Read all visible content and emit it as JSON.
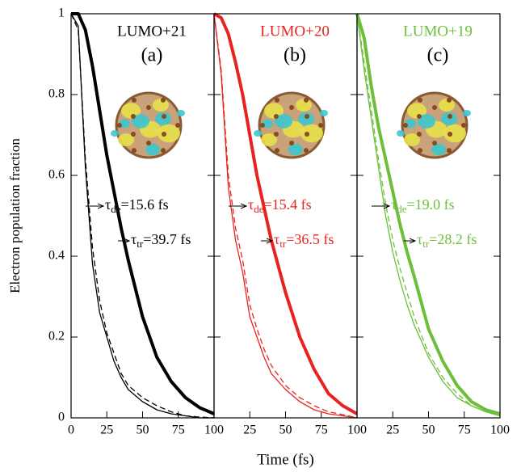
{
  "chart_data": [
    {
      "type": "line",
      "title": "LUMO+21",
      "label": "(a)",
      "ylabel": "Electron population fraction",
      "x": [
        0,
        5,
        10,
        15,
        20,
        25,
        30,
        35,
        40,
        50,
        60,
        70,
        80,
        90,
        100
      ],
      "series": [
        {
          "color": "#000000",
          "line_width": 4,
          "dash": false,
          "values": [
            1,
            1,
            0.96,
            0.87,
            0.76,
            0.65,
            0.56,
            0.47,
            0.39,
            0.25,
            0.15,
            0.09,
            0.05,
            0.025,
            0.01
          ]
        },
        {
          "color": "#000000",
          "line_width": 1.3,
          "dash": false,
          "values": [
            1,
            0.97,
            0.62,
            0.38,
            0.26,
            0.2,
            0.14,
            0.1,
            0.07,
            0.04,
            0.02,
            0.01,
            0.005,
            0,
            0
          ]
        },
        {
          "color": "#000000",
          "line_width": 1.3,
          "dash": true,
          "values": [
            1,
            0.96,
            0.64,
            0.42,
            0.29,
            0.21,
            0.16,
            0.11,
            0.08,
            0.05,
            0.03,
            0.015,
            0.005,
            0.002,
            0
          ]
        }
      ],
      "annotations": [
        {
          "symbol": "τ",
          "subscript": "de",
          "text": "=15.6 fs"
        },
        {
          "symbol": "τ",
          "subscript": "tr",
          "text": "=39.7 fs"
        }
      ],
      "xlim": [
        0,
        100
      ],
      "ylim": [
        0,
        1
      ],
      "xticks": [
        0,
        25,
        50,
        75,
        100
      ],
      "yticks": [
        0,
        0.2,
        0.4,
        0.6,
        0.8,
        1
      ]
    },
    {
      "type": "line",
      "title": "LUMO+20",
      "label": "(b)",
      "xlabel": "Time (fs)",
      "x": [
        0,
        5,
        10,
        15,
        20,
        25,
        30,
        35,
        40,
        50,
        60,
        70,
        80,
        90,
        100
      ],
      "series": [
        {
          "color": "#e8231e",
          "line_width": 4,
          "dash": false,
          "values": [
            1,
            0.99,
            0.95,
            0.88,
            0.8,
            0.7,
            0.6,
            0.52,
            0.44,
            0.31,
            0.2,
            0.12,
            0.06,
            0.03,
            0.01
          ]
        },
        {
          "color": "#e8231e",
          "line_width": 1.3,
          "dash": false,
          "values": [
            1,
            0.85,
            0.57,
            0.44,
            0.36,
            0.25,
            0.2,
            0.15,
            0.11,
            0.07,
            0.04,
            0.02,
            0.01,
            0.005,
            0
          ]
        },
        {
          "color": "#e8231e",
          "line_width": 1.3,
          "dash": true,
          "values": [
            1,
            0.86,
            0.6,
            0.47,
            0.39,
            0.28,
            0.22,
            0.17,
            0.13,
            0.08,
            0.05,
            0.03,
            0.015,
            0.008,
            0
          ]
        }
      ],
      "annotations": [
        {
          "symbol": "τ",
          "subscript": "de",
          "text": "=15.4 fs"
        },
        {
          "symbol": "τ",
          "subscript": "tr",
          "text": "=36.5 fs"
        }
      ],
      "xlim": [
        0,
        100
      ],
      "ylim": [
        0,
        1
      ],
      "xticks": [
        25,
        50,
        75,
        100
      ]
    },
    {
      "type": "line",
      "title": "LUMO+19",
      "label": "(c)",
      "x": [
        0,
        5,
        10,
        15,
        20,
        25,
        30,
        35,
        40,
        50,
        60,
        70,
        80,
        90,
        100
      ],
      "series": [
        {
          "color": "#6cbf3a",
          "line_width": 4,
          "dash": false,
          "values": [
            1,
            0.94,
            0.82,
            0.72,
            0.64,
            0.56,
            0.48,
            0.41,
            0.35,
            0.22,
            0.14,
            0.08,
            0.04,
            0.02,
            0.01
          ]
        },
        {
          "color": "#6cbf3a",
          "line_width": 1.3,
          "dash": false,
          "values": [
            1,
            0.86,
            0.74,
            0.62,
            0.5,
            0.41,
            0.34,
            0.28,
            0.23,
            0.15,
            0.09,
            0.05,
            0.03,
            0.015,
            0.005
          ]
        },
        {
          "color": "#6cbf3a",
          "line_width": 1.3,
          "dash": true,
          "values": [
            1,
            0.88,
            0.76,
            0.64,
            0.53,
            0.44,
            0.37,
            0.31,
            0.25,
            0.16,
            0.1,
            0.06,
            0.03,
            0.015,
            0.005
          ]
        }
      ],
      "annotations": [
        {
          "symbol": "τ",
          "subscript": "de",
          "text": "=19.0 fs"
        },
        {
          "symbol": "τ",
          "subscript": "tr",
          "text": "=28.2 fs"
        }
      ],
      "xlim": [
        0,
        100
      ],
      "ylim": [
        0,
        1
      ],
      "xticks": [
        25,
        50,
        75,
        100
      ]
    }
  ]
}
